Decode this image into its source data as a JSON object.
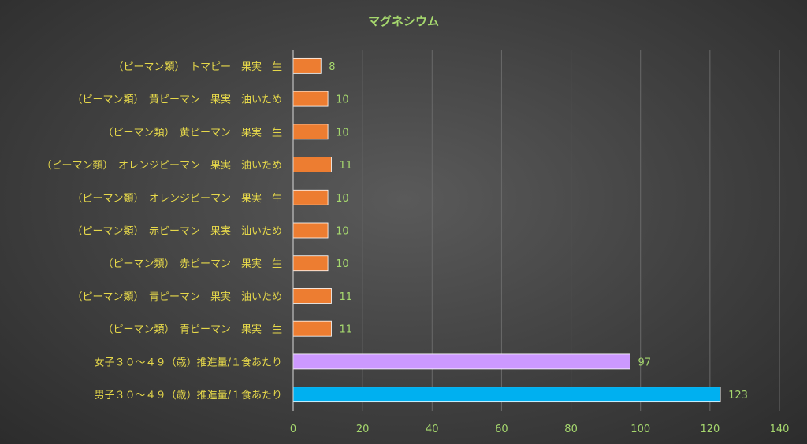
{
  "chart_data": {
    "type": "bar",
    "orientation": "horizontal",
    "title": "マグネシウム",
    "categories": [
      "（ピーマン類）　トマピー　果実　生",
      "（ピーマン類）　黄ピーマン　果実　油いため",
      "（ピーマン類）　黄ピーマン　果実　生",
      "（ピーマン類）　オレンジピーマン　果実　油いため",
      "（ピーマン類）　オレンジピーマン　果実　生",
      "（ピーマン類）　赤ピーマン　果実　油いため",
      "（ピーマン類）　赤ピーマン　果実　生",
      "（ピーマン類）　青ピーマン　果実　油いため",
      "（ピーマン類）　青ピーマン　果実　生",
      "女子３０～４９（歳）推進量/１食あたり",
      "男子３０～４９（歳）推進量/１食あたり"
    ],
    "values": [
      8,
      10,
      10,
      11,
      10,
      10,
      10,
      11,
      11,
      97,
      123
    ],
    "data_labels": [
      "8",
      "10",
      "10",
      "11",
      "10",
      "10",
      "10",
      "11",
      "11",
      "97",
      "123"
    ],
    "bar_colors": [
      "#ed7d31",
      "#ed7d31",
      "#ed7d31",
      "#ed7d31",
      "#ed7d31",
      "#ed7d31",
      "#ed7d31",
      "#ed7d31",
      "#ed7d31",
      "#cc99ff",
      "#00b0f0"
    ],
    "xlim": [
      0,
      140
    ],
    "x_ticks": [
      "0",
      "20",
      "40",
      "60",
      "80",
      "100",
      "120",
      "140"
    ],
    "grid": true,
    "legend": "none",
    "xlabel": "",
    "ylabel": ""
  }
}
